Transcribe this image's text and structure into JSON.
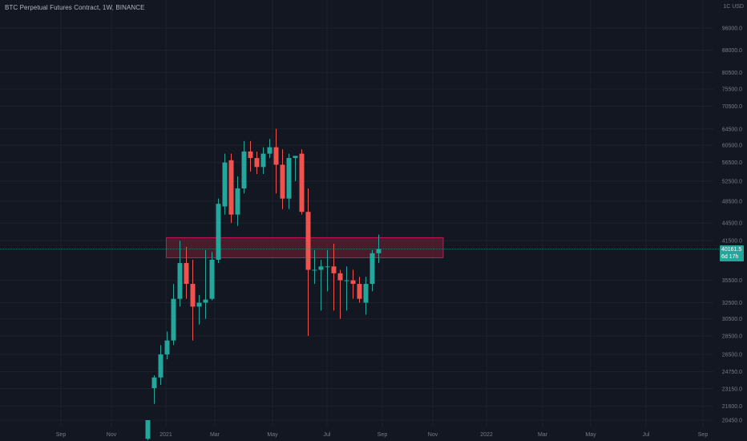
{
  "header": {
    "title": "BTC Perpetual Futures Contract, 1W, BINANCE",
    "currency": "1C USD"
  },
  "price_tag": {
    "price": "40161.5",
    "countdown": "6d 17h"
  },
  "colors": {
    "background": "#131722",
    "up": "#26a69a",
    "down": "#ef5350",
    "zone_fill": "#7a1e33",
    "zone_border": "#c2185b",
    "grid": "#1e222d",
    "axis_text": "#787b86",
    "price_line": "#26a69a"
  },
  "chart_data": {
    "type": "candlestick",
    "title": "BTC Perpetual Futures Contract, 1W, BINANCE",
    "x_axis_labels": [
      "Sep",
      "Nov",
      "2021",
      "Mar",
      "May",
      "Jul",
      "Sep",
      "Nov",
      "2022",
      "Mar",
      "May",
      "Jul",
      "Sep"
    ],
    "y_axis_labels": [
      "96000.0",
      "88000.0",
      "80500.0",
      "75500.0",
      "70500.0",
      "64500.0",
      "60500.0",
      "56500.0",
      "52500.0",
      "48500.0",
      "44500.0",
      "41500.0",
      "35500.0",
      "32500.0",
      "30500.0",
      "28500.0",
      "26500.0",
      "24750.0",
      "23150.0",
      "21600.0",
      "20450.0"
    ],
    "y_scale": "log",
    "last_price": 40161.5,
    "resistance_zone": {
      "low": 38800,
      "high": 42000,
      "from_week": 0,
      "to_week": 50
    },
    "candles": [
      {
        "week": 0,
        "open": 19000,
        "high": 20450,
        "low": 18900,
        "close": 20450
      },
      {
        "week": 1,
        "open": 23200,
        "high": 24400,
        "low": 21800,
        "close": 24200
      },
      {
        "week": 2,
        "open": 24200,
        "high": 27500,
        "low": 23500,
        "close": 26500
      },
      {
        "week": 3,
        "open": 26500,
        "high": 29000,
        "low": 26000,
        "close": 28000
      },
      {
        "week": 4,
        "open": 28000,
        "high": 35000,
        "low": 27500,
        "close": 33000
      },
      {
        "week": 5,
        "open": 33000,
        "high": 41500,
        "low": 32000,
        "close": 38000
      },
      {
        "week": 6,
        "open": 38000,
        "high": 40500,
        "low": 33000,
        "close": 35000
      },
      {
        "week": 7,
        "open": 35000,
        "high": 38500,
        "low": 28000,
        "close": 32000
      },
      {
        "week": 8,
        "open": 32000,
        "high": 33500,
        "low": 29800,
        "close": 32500
      },
      {
        "week": 9,
        "open": 32500,
        "high": 40000,
        "low": 30500,
        "close": 32900
      },
      {
        "week": 10,
        "open": 33000,
        "high": 39700,
        "low": 32800,
        "close": 38500
      },
      {
        "week": 11,
        "open": 38500,
        "high": 49000,
        "low": 38000,
        "close": 48000
      },
      {
        "week": 12,
        "open": 47500,
        "high": 58500,
        "low": 46000,
        "close": 56500
      },
      {
        "week": 13,
        "open": 57000,
        "high": 58500,
        "low": 44500,
        "close": 46000
      },
      {
        "week": 14,
        "open": 46000,
        "high": 53500,
        "low": 44000,
        "close": 51000
      },
      {
        "week": 15,
        "open": 51000,
        "high": 61500,
        "low": 50000,
        "close": 59000
      },
      {
        "week": 16,
        "open": 59000,
        "high": 61500,
        "low": 54500,
        "close": 57500
      },
      {
        "week": 17,
        "open": 57500,
        "high": 59000,
        "low": 54000,
        "close": 55500
      },
      {
        "week": 18,
        "open": 55500,
        "high": 60000,
        "low": 54000,
        "close": 58500
      },
      {
        "week": 19,
        "open": 58500,
        "high": 62000,
        "low": 57500,
        "close": 60000
      },
      {
        "week": 20,
        "open": 60000,
        "high": 64500,
        "low": 50000,
        "close": 56000
      },
      {
        "week": 21,
        "open": 56000,
        "high": 59500,
        "low": 47000,
        "close": 49000
      },
      {
        "week": 22,
        "open": 49000,
        "high": 58500,
        "low": 47000,
        "close": 57500
      },
      {
        "week": 23,
        "open": 57500,
        "high": 58000,
        "low": 52500,
        "close": 58000
      },
      {
        "week": 24,
        "open": 58500,
        "high": 59500,
        "low": 46000,
        "close": 46500
      },
      {
        "week": 25,
        "open": 46500,
        "high": 51000,
        "low": 28500,
        "close": 37000
      },
      {
        "week": 26,
        "open": 37000,
        "high": 40000,
        "low": 35000,
        "close": 37000
      },
      {
        "week": 27,
        "open": 37000,
        "high": 38500,
        "low": 31500,
        "close": 37500
      },
      {
        "week": 28,
        "open": 37500,
        "high": 40000,
        "low": 34000,
        "close": 37500
      },
      {
        "week": 29,
        "open": 37500,
        "high": 41000,
        "low": 31500,
        "close": 36500
      },
      {
        "week": 30,
        "open": 36500,
        "high": 37000,
        "low": 30500,
        "close": 35500
      },
      {
        "week": 31,
        "open": 35500,
        "high": 37500,
        "low": 31500,
        "close": 35500
      },
      {
        "week": 32,
        "open": 35500,
        "high": 37000,
        "low": 33000,
        "close": 35000
      },
      {
        "week": 33,
        "open": 35000,
        "high": 36000,
        "low": 32500,
        "close": 33000
      },
      {
        "week": 34,
        "open": 32500,
        "high": 36000,
        "low": 31000,
        "close": 35000
      },
      {
        "week": 35,
        "open": 35000,
        "high": 40000,
        "low": 34000,
        "close": 39500
      },
      {
        "week": 36,
        "open": 39500,
        "high": 42500,
        "low": 38000,
        "close": 40161.5
      }
    ]
  }
}
